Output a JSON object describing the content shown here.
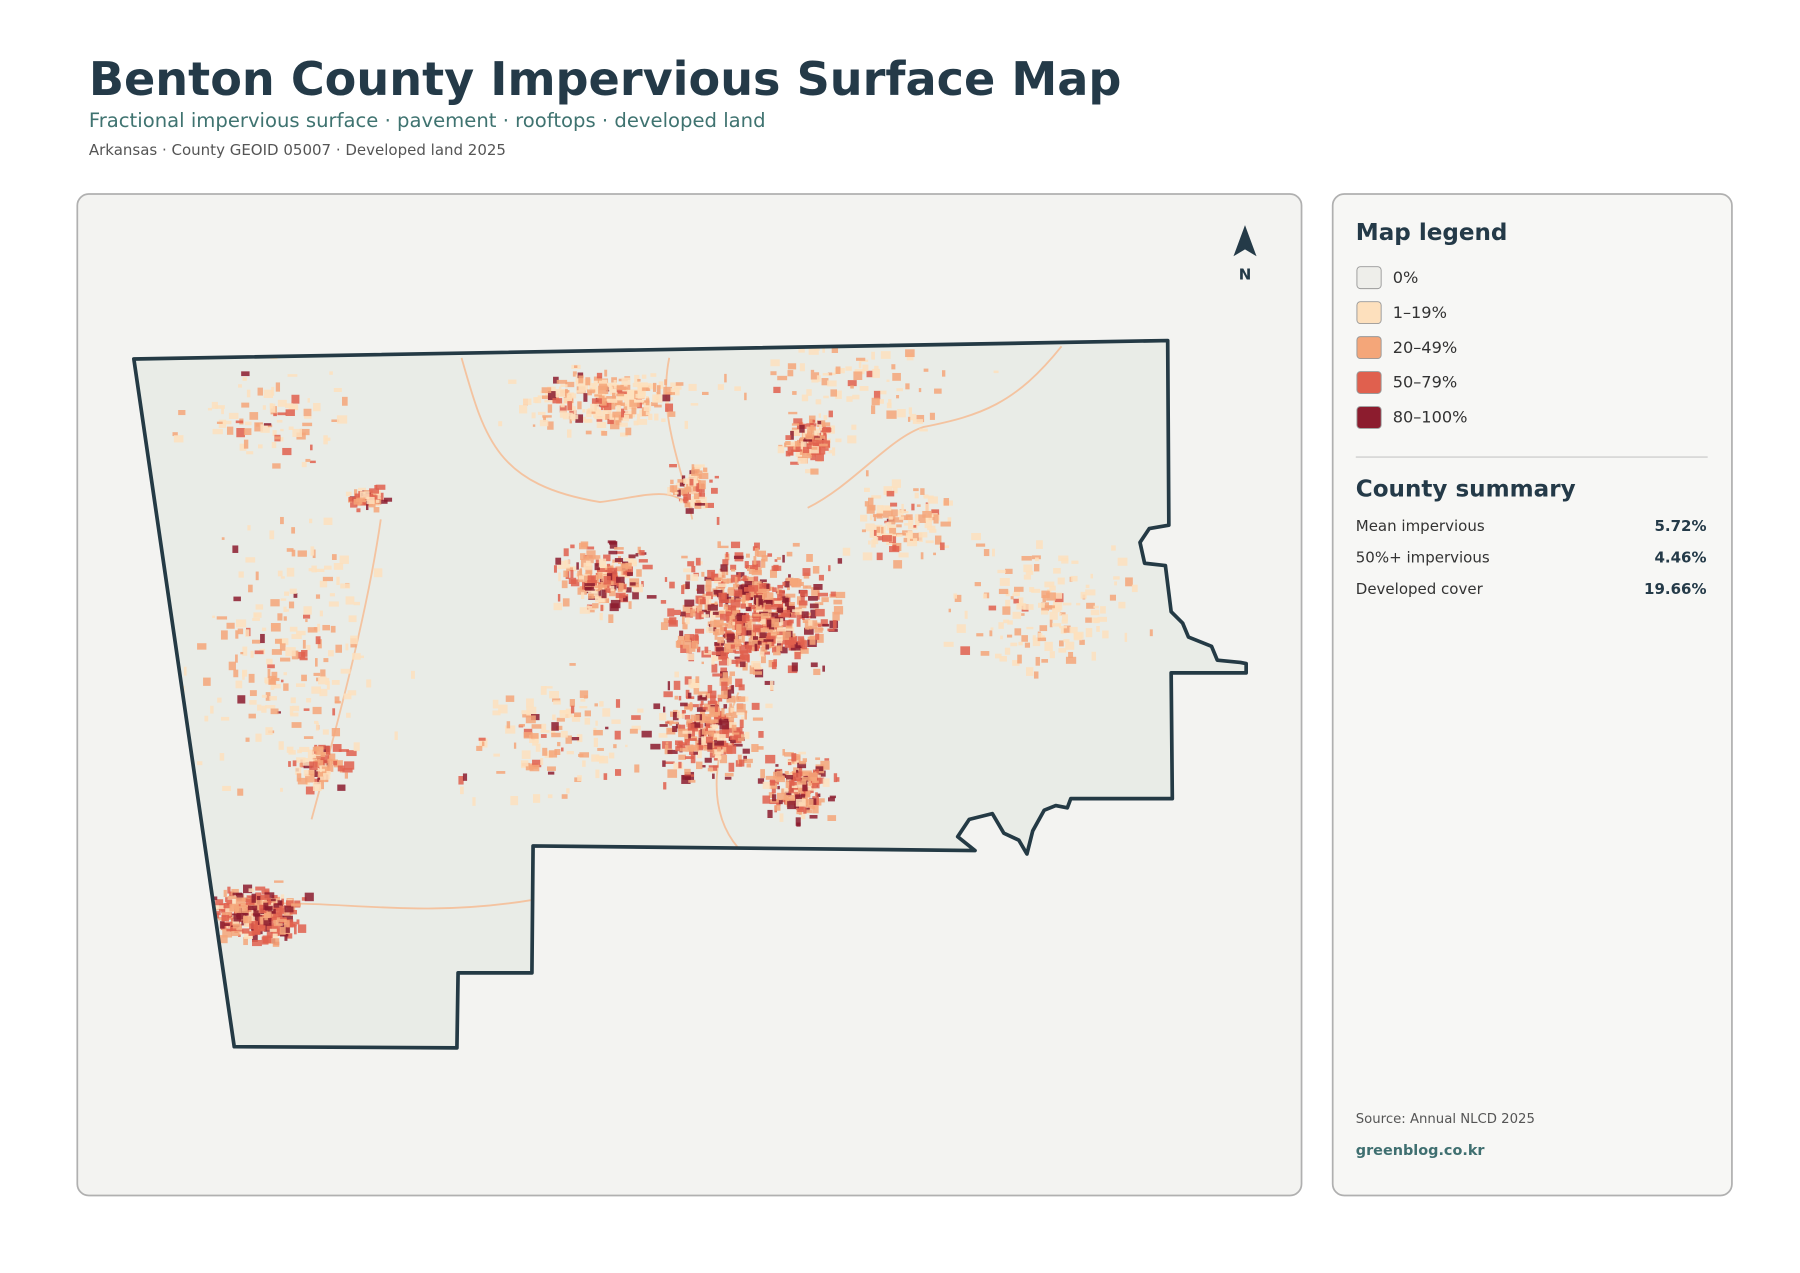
{
  "header": {
    "title": "Benton County Impervious Surface Map",
    "subtitle": "Fractional impervious surface · pavement · rooftops · developed land",
    "meta": "Arkansas · County GEOID 05007 · Developed land 2025"
  },
  "map": {
    "north_label": "N"
  },
  "legend": {
    "title": "Map legend",
    "items": [
      {
        "label": "0%",
        "color": "#eeeeea"
      },
      {
        "label": "1–19%",
        "color": "#fde0bd"
      },
      {
        "label": "20–49%",
        "color": "#f4a679"
      },
      {
        "label": "50–79%",
        "color": "#e0604e"
      },
      {
        "label": "80–100%",
        "color": "#8c1c2e"
      }
    ]
  },
  "summary": {
    "title": "County summary",
    "rows": [
      {
        "label": "Mean impervious",
        "value": "5.72%"
      },
      {
        "label": "50%+ impervious",
        "value": "4.46%"
      },
      {
        "label": "Developed cover",
        "value": "19.66%"
      }
    ]
  },
  "footer": {
    "source": "Source: Annual NLCD 2025",
    "credit": "greenblog.co.kr"
  }
}
